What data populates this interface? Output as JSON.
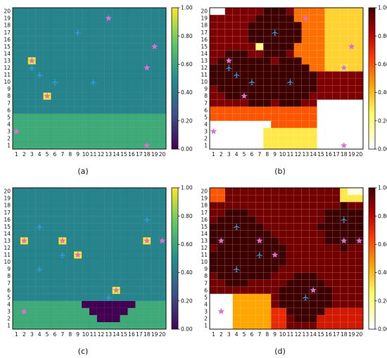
{
  "figure": {
    "captions": [
      "(a)",
      "(b)",
      "(c)",
      "(d)"
    ]
  },
  "colors": {
    "viridis_low": "#440154",
    "viridis_mid": "#21908d",
    "viridis_high": "#fde725",
    "star": "#e26cd7",
    "plane": "#2e9fe6",
    "highlight": "#f2d14a"
  },
  "icons": {
    "plane": "airplane-icon",
    "star": "star-marker-icon"
  },
  "chart_data": [
    {
      "type": "heatmap",
      "caption": "(a)",
      "colormap": "viridis",
      "grid": {
        "cols": 20,
        "rows": 20
      },
      "x_ticks": [
        "1",
        "2",
        "3",
        "4",
        "5",
        "6",
        "7",
        "8",
        "9",
        "10",
        "11",
        "12",
        "13",
        "14",
        "15",
        "16",
        "17",
        "18",
        "19",
        "20"
      ],
      "y_ticks": [
        "1",
        "2",
        "3",
        "4",
        "5",
        "6",
        "7",
        "8",
        "9",
        "10",
        "11",
        "12",
        "13",
        "14",
        "15",
        "16",
        "17",
        "18",
        "19",
        "20"
      ],
      "colorbar_ticks": [
        "0.00",
        "0.20",
        "0.40",
        "0.60",
        "0.80",
        "1.00"
      ],
      "clim": [
        0,
        1
      ],
      "default_value": 0.62,
      "regions": [
        {
          "shape": "circle",
          "cx": 9,
          "cy": 17,
          "r": 3.3,
          "value": 0.0
        },
        {
          "shape": "circle",
          "cx": 4,
          "cy": 11,
          "r": 3.6,
          "value": 0.0
        },
        {
          "shape": "circle",
          "cx": 7,
          "cy": 10,
          "r": 3.6,
          "value": 0.0
        },
        {
          "shape": "circle",
          "cx": 11,
          "cy": 10,
          "r": 3.3,
          "value": 0.0
        },
        {
          "shape": "rect",
          "x0": 1,
          "x1": 20,
          "y0": 6,
          "y1": 20,
          "value": 0.45
        }
      ],
      "cells": [
        {
          "x": 3,
          "y": 13,
          "value": 1.0
        },
        {
          "x": 5,
          "y": 8,
          "value": 1.0
        }
      ],
      "planes": [
        [
          9,
          17
        ],
        [
          3,
          12
        ],
        [
          4,
          11
        ],
        [
          6,
          10
        ],
        [
          11,
          10
        ]
      ],
      "stars": [
        [
          13,
          19
        ],
        [
          19,
          15
        ],
        [
          18,
          12
        ],
        [
          3,
          13
        ],
        [
          5,
          8
        ],
        [
          1,
          3
        ],
        [
          18,
          1
        ]
      ]
    },
    {
      "type": "heatmap",
      "caption": "(b)",
      "colormap": "hot_r",
      "grid": {
        "cols": 20,
        "rows": 20
      },
      "x_ticks": [
        "1",
        "2",
        "3",
        "4",
        "5",
        "6",
        "7",
        "8",
        "9",
        "10",
        "11",
        "12",
        "13",
        "14",
        "15",
        "16",
        "17",
        "18",
        "19",
        "20"
      ],
      "y_ticks": [
        "1",
        "2",
        "3",
        "4",
        "5",
        "6",
        "7",
        "8",
        "9",
        "10",
        "11",
        "12",
        "13",
        "14",
        "15",
        "16",
        "17",
        "18",
        "19",
        "20"
      ],
      "colorbar_ticks": [
        "0.00",
        "0.20",
        "0.40",
        "0.60",
        "0.80",
        "1.00"
      ],
      "clim": [
        0,
        1
      ],
      "default_value": 0.9,
      "regions": [
        {
          "shape": "rect",
          "x0": 12,
          "x1": 20,
          "y0": 12,
          "y1": 20,
          "value": 0.55
        },
        {
          "shape": "rect",
          "x0": 16,
          "x1": 20,
          "y0": 12,
          "y1": 20,
          "value": 0.35
        },
        {
          "shape": "rect",
          "x0": 1,
          "x1": 20,
          "y0": 1,
          "y1": 6,
          "value": 0.6
        },
        {
          "shape": "rect",
          "x0": 1,
          "x1": 8,
          "y0": 1,
          "y1": 4,
          "value": 0.0
        },
        {
          "shape": "rect",
          "x0": 15,
          "x1": 20,
          "y0": 1,
          "y1": 7,
          "value": 0.0
        },
        {
          "shape": "rect",
          "x0": 8,
          "x1": 14,
          "y0": 1,
          "y1": 3,
          "value": 0.3
        },
        {
          "shape": "circle",
          "cx": 9,
          "cy": 17,
          "r": 3.3,
          "value": 1.0
        },
        {
          "shape": "circle",
          "cx": 4,
          "cy": 11,
          "r": 3.6,
          "value": 1.0
        },
        {
          "shape": "circle",
          "cx": 7,
          "cy": 10,
          "r": 3.6,
          "value": 1.0
        },
        {
          "shape": "circle",
          "cx": 11,
          "cy": 10,
          "r": 3.3,
          "value": 1.0
        }
      ],
      "cells": [
        {
          "x": 1,
          "y": 20,
          "value": 0.0
        },
        {
          "x": 2,
          "y": 20,
          "value": 0.0
        },
        {
          "x": 7,
          "y": 15,
          "value": 0.2
        },
        {
          "x": 18,
          "y": 12,
          "value": 0.3
        }
      ],
      "planes": [
        [
          9,
          17
        ],
        [
          3,
          12
        ],
        [
          4,
          11
        ],
        [
          6,
          10
        ],
        [
          11,
          10
        ]
      ],
      "stars": [
        [
          13,
          19
        ],
        [
          19,
          15
        ],
        [
          18,
          12
        ],
        [
          3,
          13
        ],
        [
          5,
          8
        ],
        [
          1,
          3
        ],
        [
          18,
          1
        ]
      ]
    },
    {
      "type": "heatmap",
      "caption": "(c)",
      "colormap": "viridis",
      "grid": {
        "cols": 20,
        "rows": 20
      },
      "x_ticks": [
        "1",
        "2",
        "3",
        "4",
        "5",
        "6",
        "7",
        "8",
        "9",
        "10",
        "11",
        "12",
        "13",
        "14",
        "15",
        "16",
        "17",
        "18",
        "19",
        "20"
      ],
      "y_ticks": [
        "1",
        "2",
        "3",
        "4",
        "5",
        "6",
        "7",
        "8",
        "9",
        "10",
        "11",
        "12",
        "13",
        "14",
        "15",
        "16",
        "17",
        "18",
        "19",
        "20"
      ],
      "colorbar_ticks": [
        "0.00",
        "0.20",
        "0.40",
        "0.60",
        "0.80",
        "1.00"
      ],
      "clim": [
        0,
        1
      ],
      "default_value": 0.62,
      "regions": [
        {
          "shape": "circle",
          "cx": 4,
          "cy": 14,
          "r": 3.5,
          "value": 0.0
        },
        {
          "shape": "circle",
          "cx": 4,
          "cy": 10,
          "r": 3.5,
          "value": 0.0
        },
        {
          "shape": "circle",
          "cx": 7,
          "cy": 11,
          "r": 3.3,
          "value": 0.0
        },
        {
          "shape": "circle",
          "cx": 18,
          "cy": 15,
          "r": 3.0,
          "value": 0.0
        },
        {
          "shape": "circle",
          "cx": 13,
          "cy": 5,
          "r": 3.3,
          "value": 0.0
        },
        {
          "shape": "rect",
          "x0": 1,
          "x1": 20,
          "y0": 5,
          "y1": 20,
          "value": 0.45
        }
      ],
      "cells": [
        {
          "x": 2,
          "y": 13,
          "value": 1.0
        },
        {
          "x": 7,
          "y": 13,
          "value": 1.0
        },
        {
          "x": 9,
          "y": 11,
          "value": 1.0
        },
        {
          "x": 18,
          "y": 13,
          "value": 1.0
        },
        {
          "x": 14,
          "y": 6,
          "value": 1.0
        }
      ],
      "planes": [
        [
          4,
          15
        ],
        [
          7,
          11
        ],
        [
          4,
          9
        ],
        [
          18,
          16
        ],
        [
          13,
          5
        ]
      ],
      "stars": [
        [
          2,
          13
        ],
        [
          7,
          13
        ],
        [
          9,
          11
        ],
        [
          18,
          13
        ],
        [
          20,
          13
        ],
        [
          14,
          6
        ],
        [
          2,
          3
        ]
      ]
    },
    {
      "type": "heatmap",
      "caption": "(d)",
      "colormap": "hot_r",
      "grid": {
        "cols": 20,
        "rows": 20
      },
      "x_ticks": [
        "1",
        "2",
        "3",
        "4",
        "5",
        "6",
        "7",
        "8",
        "9",
        "10",
        "11",
        "12",
        "13",
        "14",
        "15",
        "16",
        "17",
        "18",
        "19",
        "20"
      ],
      "y_ticks": [
        "1",
        "2",
        "3",
        "4",
        "5",
        "6",
        "7",
        "8",
        "9",
        "10",
        "11",
        "12",
        "13",
        "14",
        "15",
        "16",
        "17",
        "18",
        "19",
        "20"
      ],
      "colorbar_ticks": [
        "0.00",
        "0.20",
        "0.40",
        "0.60",
        "0.80",
        "1.00"
      ],
      "clim": [
        0,
        1
      ],
      "default_value": 0.92,
      "regions": [
        {
          "shape": "rect",
          "x0": 1,
          "x1": 8,
          "y0": 1,
          "y1": 5,
          "value": 0.45
        },
        {
          "shape": "rect",
          "x0": 1,
          "x1": 3,
          "y0": 1,
          "y1": 5,
          "value": 0.0
        },
        {
          "shape": "rect",
          "x0": 9,
          "x1": 10,
          "y0": 1,
          "y1": 3,
          "value": 0.7
        },
        {
          "shape": "rect",
          "x0": 15,
          "x1": 20,
          "y0": 1,
          "y1": 3,
          "value": 0.75
        },
        {
          "shape": "rect",
          "x0": 18,
          "x1": 20,
          "y0": 19,
          "y1": 20,
          "value": 0.3
        },
        {
          "shape": "rect",
          "x0": 1,
          "x1": 2,
          "y0": 19,
          "y1": 20,
          "value": 0.6
        },
        {
          "shape": "circle",
          "cx": 4,
          "cy": 14,
          "r": 3.5,
          "value": 1.0
        },
        {
          "shape": "circle",
          "cx": 4,
          "cy": 10,
          "r": 3.5,
          "value": 1.0
        },
        {
          "shape": "circle",
          "cx": 7,
          "cy": 11,
          "r": 3.3,
          "value": 1.0
        },
        {
          "shape": "circle",
          "cx": 18,
          "cy": 15,
          "r": 3.0,
          "value": 1.0
        },
        {
          "shape": "circle",
          "cx": 13,
          "cy": 5,
          "r": 3.3,
          "value": 1.0
        }
      ],
      "cells": [
        {
          "x": 19,
          "y": 20,
          "value": 0.05
        },
        {
          "x": 20,
          "y": 20,
          "value": 0.05
        }
      ],
      "planes": [
        [
          4,
          15
        ],
        [
          7,
          11
        ],
        [
          4,
          9
        ],
        [
          18,
          16
        ],
        [
          13,
          5
        ]
      ],
      "stars": [
        [
          2,
          13
        ],
        [
          7,
          13
        ],
        [
          9,
          11
        ],
        [
          18,
          13
        ],
        [
          20,
          13
        ],
        [
          14,
          6
        ],
        [
          2,
          3
        ]
      ]
    }
  ]
}
